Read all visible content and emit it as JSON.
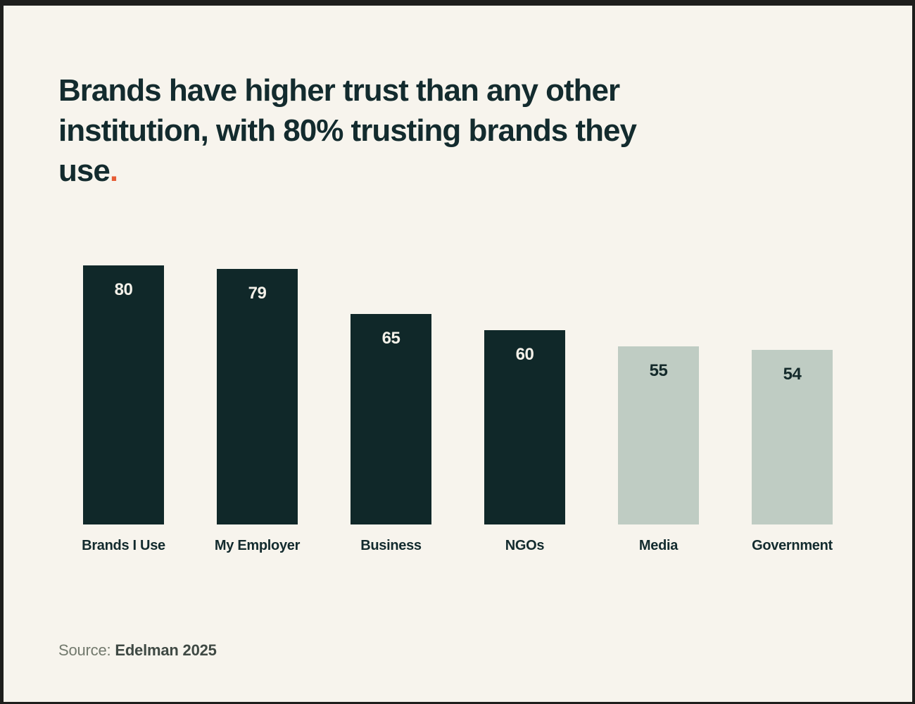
{
  "frame": {
    "background": "#f7f4ed",
    "border_color": "#1e1e1c"
  },
  "title": {
    "lines": [
      "Brands have higher trust than any other",
      "institution, with 80% trusting brands they",
      "use"
    ],
    "period": ".",
    "color": "#132b2e",
    "period_color": "#e65c34"
  },
  "chart_data": {
    "type": "bar",
    "title": "Brands have higher trust than any other institution, with 80% trusting brands they use.",
    "categories": [
      "Brands I Use",
      "My Employer",
      "Business",
      "NGOs",
      "Media",
      "Government"
    ],
    "values": [
      80,
      79,
      65,
      60,
      55,
      54
    ],
    "xlabel": "",
    "ylabel": "",
    "ylim": [
      0,
      80
    ],
    "grid": false,
    "legend": false,
    "value_labels_shown": true,
    "bar_colors": [
      "#102829",
      "#102829",
      "#102829",
      "#102829",
      "#bfccc3",
      "#bfccc3"
    ],
    "value_label_colors": [
      "#f4f1e9",
      "#f4f1e9",
      "#f4f1e9",
      "#f4f1e9",
      "#142a2b",
      "#142a2b"
    ]
  },
  "source": {
    "prefix": "Source: ",
    "name": "Edelman 2025"
  }
}
